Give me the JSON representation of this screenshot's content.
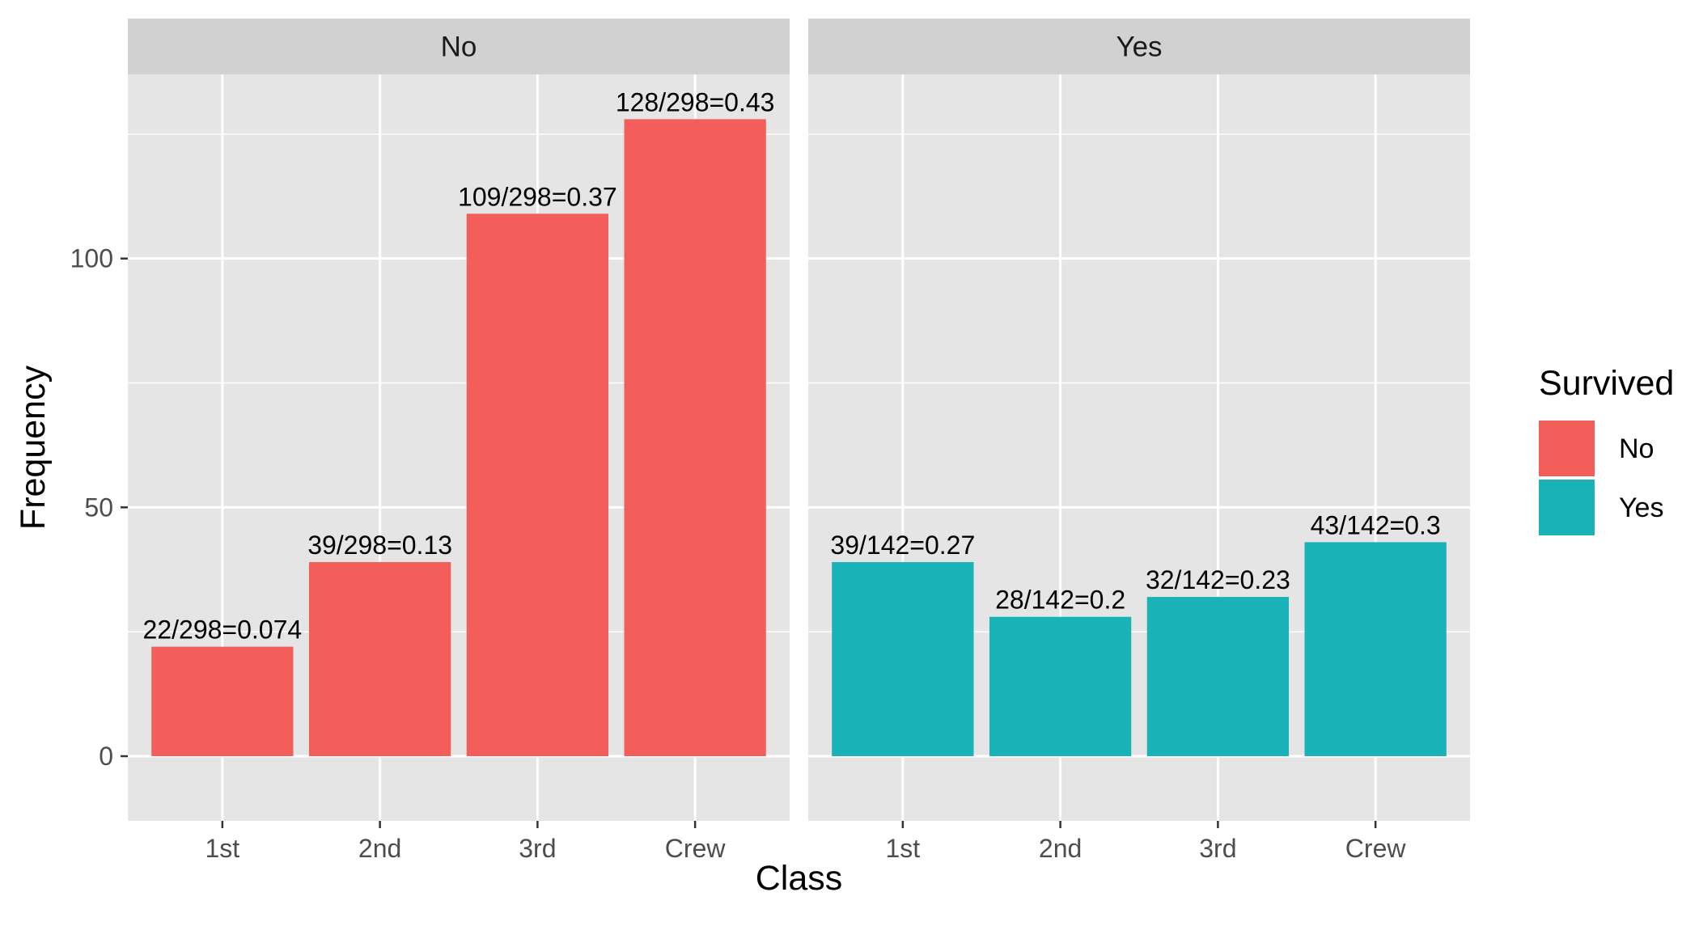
{
  "chart_data": {
    "type": "bar",
    "xlabel": "Class",
    "ylabel": "Frequency",
    "ylim": [
      -13,
      137
    ],
    "yticks": [
      0,
      50,
      100
    ],
    "categories": [
      "1st",
      "2nd",
      "3rd",
      "Crew"
    ],
    "grid": true,
    "legend": {
      "title": "Survived",
      "position": "right",
      "entries": [
        {
          "label": "No",
          "color": "#F35E5A"
        },
        {
          "label": "Yes",
          "color": "#19B3B7"
        }
      ]
    },
    "facets": [
      {
        "name": "No",
        "color": "#F35E5A",
        "values": [
          22,
          39,
          109,
          128
        ],
        "labels": [
          "22/298=0.074",
          "39/298=0.13",
          "109/298=0.37",
          "128/298=0.43"
        ]
      },
      {
        "name": "Yes",
        "color": "#19B3B7",
        "values": [
          39,
          28,
          32,
          43
        ],
        "labels": [
          "39/142=0.27",
          "28/142=0.2",
          "32/142=0.23",
          "43/142=0.3"
        ]
      }
    ],
    "colors": {
      "panel_bg": "#E5E5E5",
      "strip_bg": "#D1D1D1",
      "grid": "#FFFFFF",
      "tick": "#333333"
    }
  }
}
